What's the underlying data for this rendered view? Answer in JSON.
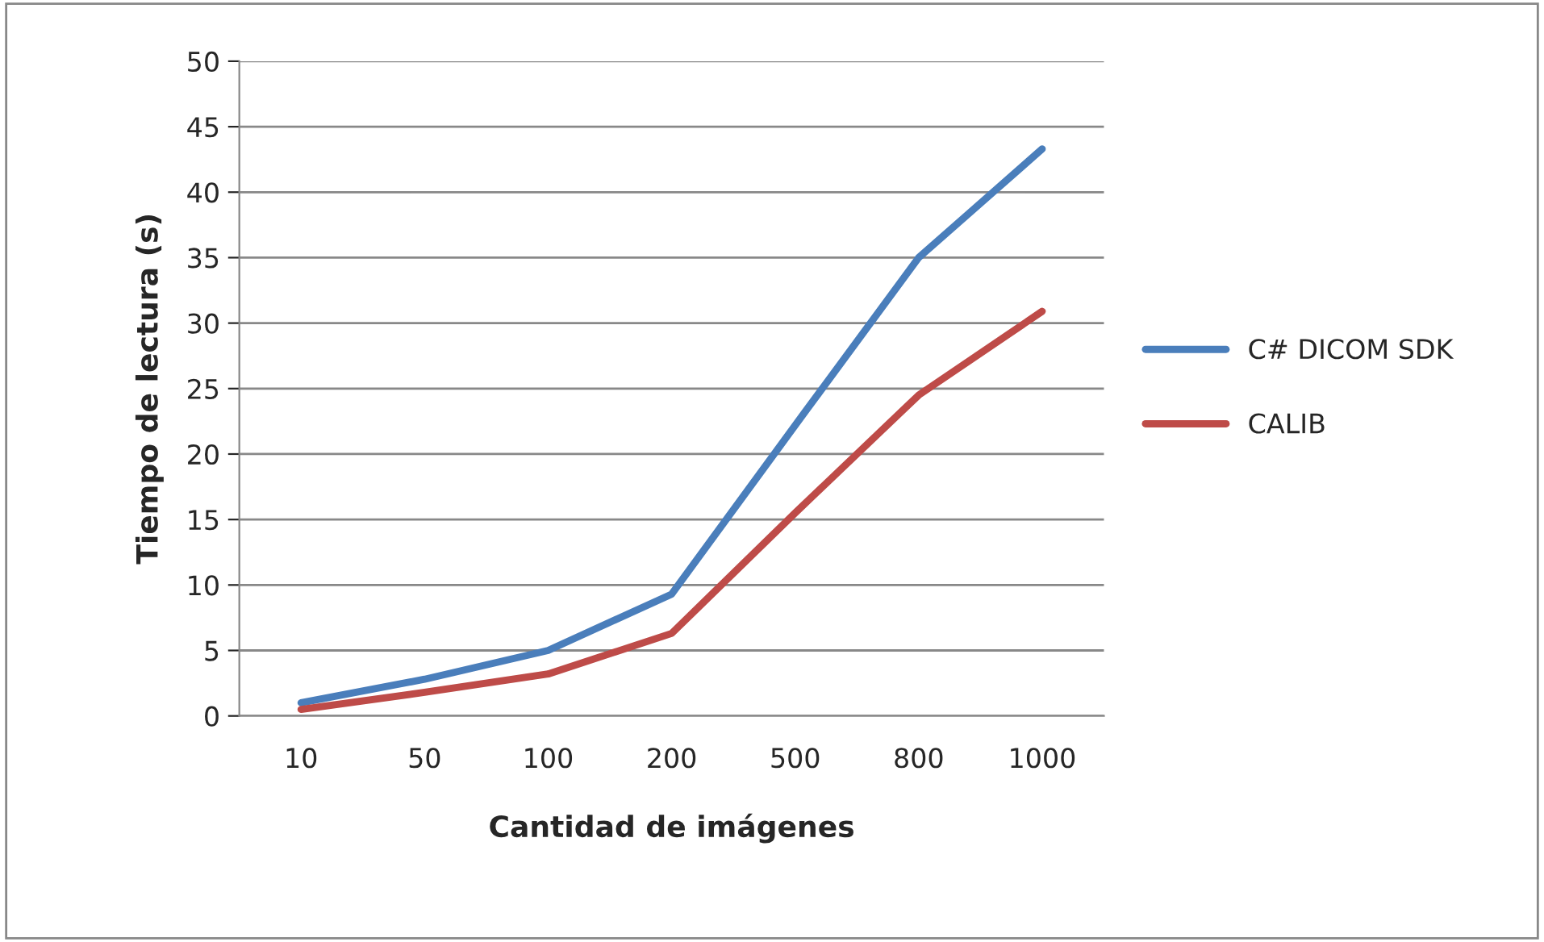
{
  "chart_data": {
    "type": "line",
    "xlabel": "Cantidad de imágenes",
    "ylabel": "Tiempo de lectura (s)",
    "categories": [
      "10",
      "50",
      "100",
      "200",
      "500",
      "800",
      "1000"
    ],
    "series": [
      {
        "name": "C# DICOM SDK",
        "color": "#4a7ebb",
        "values": [
          1.0,
          2.8,
          5.0,
          9.3,
          22.2,
          35.0,
          43.3
        ]
      },
      {
        "name": "CALIB",
        "color": "#be4b48",
        "values": [
          0.5,
          1.8,
          3.2,
          6.3,
          15.5,
          24.5,
          30.9
        ]
      }
    ],
    "ylim": [
      0,
      50
    ],
    "yticks": [
      0,
      5,
      10,
      15,
      20,
      25,
      30,
      35,
      40,
      45,
      50
    ],
    "grid": "y",
    "legend": "right",
    "marker": "none",
    "line_style": "solid"
  }
}
